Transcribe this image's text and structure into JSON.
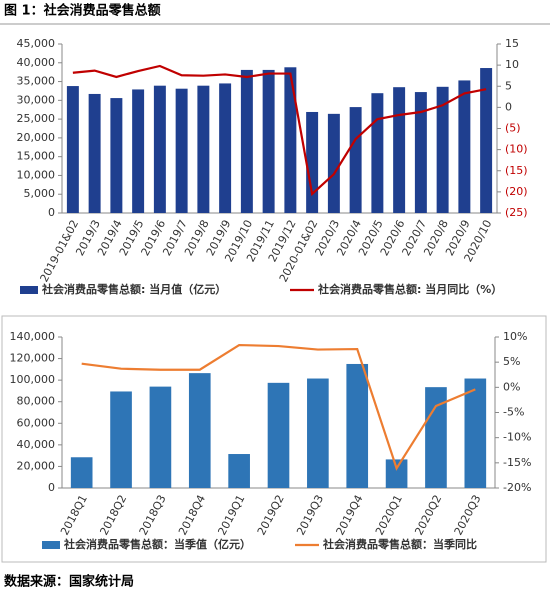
{
  "header": {
    "title": "图 1：社会消费品零售总额"
  },
  "source": "数据来源：国家统计局",
  "chart_data": [
    {
      "type": "combo",
      "categories": [
        "2019-01&02",
        "2019/3",
        "2019/4",
        "2019/5",
        "2019/6",
        "2019/7",
        "2019/8",
        "2019/9",
        "2019/10",
        "2019/11",
        "2019/12",
        "2020-01&02",
        "2020/3",
        "2020/4",
        "2020/5",
        "2020/6",
        "2020/7",
        "2020/8",
        "2020/9",
        "2020/10"
      ],
      "series": [
        {
          "name": "社会消费品零售总额: 当月值（亿元）",
          "type": "bar",
          "color": "#1f3f8f",
          "axis": "y",
          "values": [
            33800,
            31700,
            30600,
            32900,
            33900,
            33100,
            33900,
            34500,
            38100,
            38100,
            38800,
            26900,
            26400,
            28200,
            31900,
            33500,
            32200,
            33600,
            35300,
            38600
          ]
        },
        {
          "name": "社会消费品零售总额: 当月同比（%）",
          "type": "line",
          "color": "#c00000",
          "axis": "y2",
          "values": [
            8.2,
            8.7,
            7.2,
            8.6,
            9.8,
            7.6,
            7.5,
            7.8,
            7.2,
            8.0,
            8.0,
            -20.5,
            -15.8,
            -7.5,
            -2.8,
            -1.8,
            -1.1,
            0.5,
            3.3,
            4.3
          ]
        }
      ],
      "ylim": [
        0,
        45000
      ],
      "yticks": [
        0,
        {
          "value": 5000,
          "label": "5,000"
        },
        {
          "value": 10000,
          "label": "10,000"
        },
        {
          "value": 15000,
          "label": "15,000"
        },
        {
          "value": 20000,
          "label": "20,000"
        },
        {
          "value": 25000,
          "label": "25,000"
        },
        {
          "value": 30000,
          "label": "30,000"
        },
        {
          "value": 35000,
          "label": "35,000"
        },
        {
          "value": 40000,
          "label": "40,000"
        },
        {
          "value": 45000,
          "label": "45,000"
        }
      ],
      "y2lim": [
        -25,
        15
      ],
      "y2ticks": [
        {
          "value": -25,
          "label": "(25)"
        },
        {
          "value": -20,
          "label": "(20)"
        },
        {
          "value": -15,
          "label": "(15)"
        },
        {
          "value": -10,
          "label": "(10)"
        },
        {
          "value": -5,
          "label": "(5)"
        },
        0,
        5,
        10,
        15
      ],
      "negative_tick_color": "#c00000",
      "legend": "bottom"
    },
    {
      "type": "combo",
      "categories": [
        "2018Q1",
        "2018Q2",
        "2018Q3",
        "2018Q4",
        "2019Q1",
        "2019Q2",
        "2019Q3",
        "2019Q4",
        "2020Q1",
        "2020Q2",
        "2020Q3"
      ],
      "series": [
        {
          "name": "社会消费品零售总额：当季值（亿元）",
          "type": "bar",
          "color": "#2e75b6",
          "axis": "y",
          "values": [
            28500,
            89500,
            94000,
            106500,
            31500,
            97500,
            101500,
            115000,
            26500,
            93500,
            101500
          ]
        },
        {
          "name": "社会消费品零售总额：当季同比",
          "type": "line",
          "color": "#ed7d31",
          "axis": "y2",
          "values": [
            4.7,
            3.7,
            3.5,
            3.5,
            8.4,
            8.2,
            7.5,
            7.6,
            -16.1,
            -3.7,
            -0.4
          ]
        }
      ],
      "ylim": [
        0,
        140000
      ],
      "yticks": [
        0,
        {
          "value": 20000,
          "label": "20,000"
        },
        {
          "value": 40000,
          "label": "40,000"
        },
        {
          "value": 60000,
          "label": "60,000"
        },
        {
          "value": 80000,
          "label": "80,000"
        },
        {
          "value": 100000,
          "label": "100,000"
        },
        {
          "value": 120000,
          "label": "120,000"
        },
        {
          "value": 140000,
          "label": "140,000"
        }
      ],
      "y2lim": [
        -20,
        10
      ],
      "y2ticks": [
        {
          "value": -20,
          "label": "-20%"
        },
        {
          "value": -15,
          "label": "-15%"
        },
        {
          "value": -10,
          "label": "-10%"
        },
        {
          "value": -5,
          "label": "-5%"
        },
        {
          "value": 0,
          "label": "0%"
        },
        {
          "value": 5,
          "label": "5%"
        },
        {
          "value": 10,
          "label": "10%"
        }
      ],
      "legend": "bottom"
    }
  ]
}
